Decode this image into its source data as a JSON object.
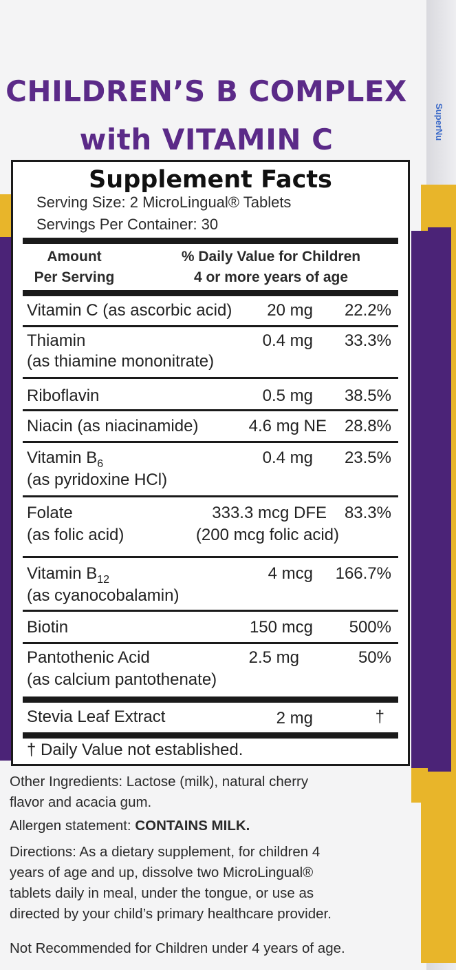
{
  "product": {
    "title_line1": "CHILDREN’S B  COMPLEX",
    "title_line2": "with VITAMIN C",
    "side_brand": "SuperNu"
  },
  "colors": {
    "brand_purple": "#5b2a88",
    "band_purple": "#4b2377",
    "band_yellow": "#e8b52a"
  },
  "facts": {
    "heading": "Supplement Facts",
    "serving_size": "Serving Size: 2 MicroLingual® Tablets",
    "servings_per_container": "Servings Per Container: 30",
    "col_amount_1": "Amount",
    "col_amount_2": "Per Serving",
    "col_dv_1": "% Daily Value for Children",
    "col_dv_2": "4 or more years of age",
    "rows": [
      {
        "name": "Vitamin C (as ascorbic acid)",
        "sub": "",
        "amount": "20 mg",
        "dv": "22.2%"
      },
      {
        "name": "Thiamin",
        "sub": "(as thiamine mononitrate)",
        "amount": "0.4 mg",
        "dv": "33.3%"
      },
      {
        "name": "Riboflavin",
        "sub": "",
        "amount": "0.5 mg",
        "dv": "38.5%"
      },
      {
        "name": "Niacin (as niacinamide)",
        "sub": "",
        "amount": "4.6 mg NE",
        "dv": "28.8%"
      },
      {
        "name": "Vitamin B",
        "name_subscript": "6",
        "sub": "(as pyridoxine  HCl)",
        "amount": "0.4 mg",
        "dv": "23.5%"
      },
      {
        "name": "Folate",
        "sub": "(as folic acid)",
        "amount": "333.3 mcg DFE",
        "amount_sub": "(200 mcg folic acid)",
        "dv": "83.3%"
      },
      {
        "name": "Vitamin B",
        "name_subscript": "12",
        "sub": "(as cyanocobalamin)",
        "amount": "4 mcg",
        "dv": "166.7%"
      },
      {
        "name": "Biotin",
        "sub": "",
        "amount": "150 mcg",
        "dv": "500%"
      },
      {
        "name": "Pantothenic Acid",
        "sub": "(as calcium pantothenate)",
        "amount": "2.5 mg",
        "dv": "50%"
      },
      {
        "name": "Stevia Leaf Extract",
        "sub": "",
        "amount": "2 mg",
        "dv": "†"
      }
    ],
    "footnote": "† Daily Value not established."
  },
  "label": {
    "other_ingredients_1": "Other Ingredients: Lactose (milk), natural cherry",
    "other_ingredients_2": "flavor and acacia gum.",
    "allergen_prefix": "Allergen statement: ",
    "allergen_value": "CONTAINS MILK.",
    "directions_1": "Directions: As a dietary supplement, for children 4",
    "directions_2": "years of age and up, dissolve two MicroLingual®",
    "directions_3": "tablets daily in meal, under the tongue, or use as",
    "directions_4": "directed by your child’s primary healthcare provider.",
    "warning": "Not Recommended for Children under 4 years of age."
  }
}
